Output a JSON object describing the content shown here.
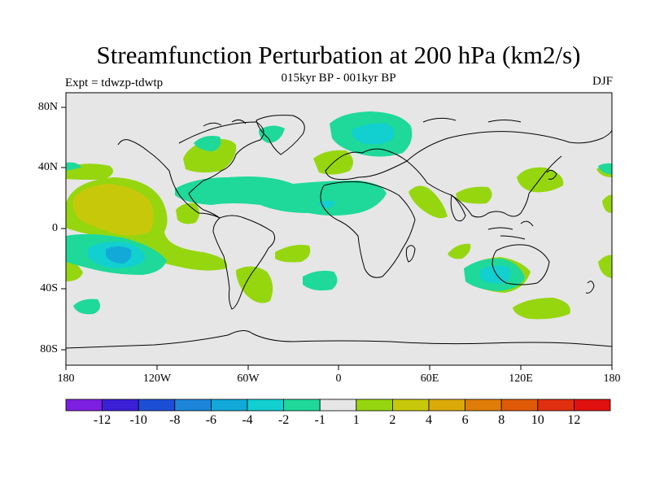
{
  "title": "Streamfunction Perturbation at 200 hPa (km2/s)",
  "subtitle": "015kyr BP - 001kyr BP",
  "left_label": "Expt = tdwzp-tdwtp",
  "right_label": "DJF",
  "lat_labels": [
    "80N",
    "40N",
    "0",
    "40S",
    "80S"
  ],
  "lon_labels": [
    "180",
    "120W",
    "60W",
    "0",
    "60E",
    "120E",
    "180"
  ],
  "colorbar": {
    "colors": [
      "#7d1fe0",
      "#3b1fd6",
      "#1d4fd6",
      "#1d86db",
      "#12a9d9",
      "#12cfd0",
      "#1ed99a",
      "#e6e6e6",
      "#96d60f",
      "#c8c80a",
      "#dbaa08",
      "#e07d08",
      "#e05a08",
      "#e03010",
      "#e01010"
    ],
    "labels": [
      "-12",
      "-10",
      "-8",
      "-6",
      "-4",
      "-2",
      "-1",
      "1",
      "2",
      "4",
      "6",
      "8",
      "10",
      "12"
    ]
  },
  "colors": {
    "background_neutral": "#e6e6e6",
    "coastline": "#000000"
  }
}
